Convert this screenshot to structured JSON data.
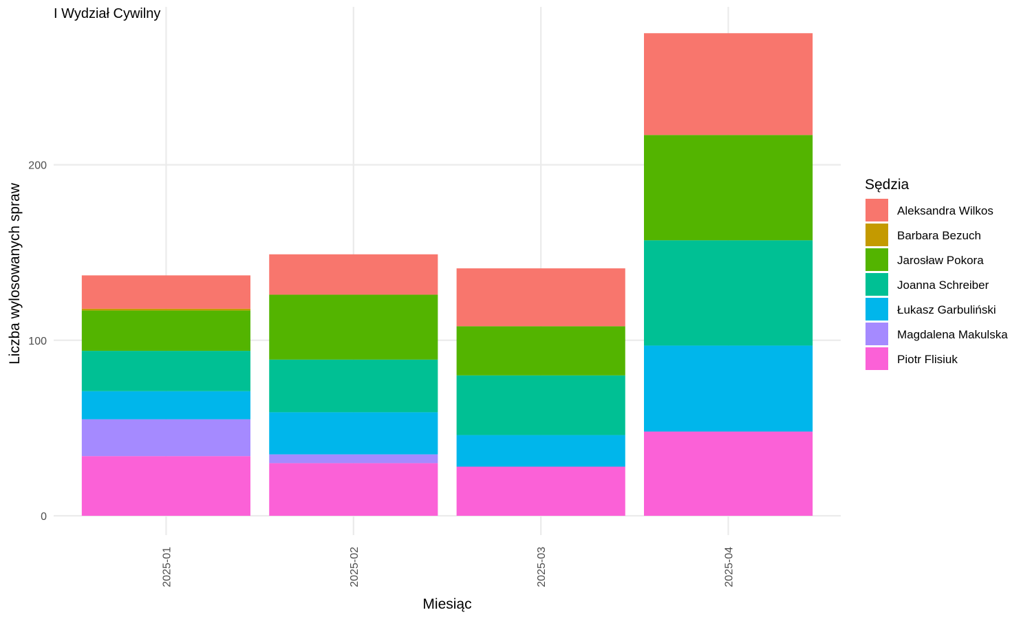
{
  "chart_data": {
    "type": "bar",
    "stacked": true,
    "title": "I Wydział Cywilny",
    "xlabel": "Miesiąc",
    "ylabel": "Liczba wylosowanych spraw",
    "ylim": [
      -11,
      290
    ],
    "yticks": [
      0,
      100,
      200
    ],
    "grid": true,
    "legend_position": "right",
    "legend_title": "Sędzia",
    "categories": [
      "2025-01",
      "2025-02",
      "2025-03",
      "2025-04"
    ],
    "series": [
      {
        "name": "Aleksandra Wilkos",
        "color": "#F8766D",
        "values": [
          19,
          23,
          33,
          58
        ]
      },
      {
        "name": "Barbara Bezuch",
        "color": "#C49A00",
        "values": [
          1,
          0,
          0,
          0
        ]
      },
      {
        "name": "Jarosław Pokora",
        "color": "#53B400",
        "values": [
          23,
          37,
          28,
          60
        ]
      },
      {
        "name": "Joanna Schreiber",
        "color": "#00C094",
        "values": [
          23,
          30,
          34,
          60
        ]
      },
      {
        "name": "Łukasz Garbuliński",
        "color": "#00B6EB",
        "values": [
          16,
          24,
          18,
          49
        ]
      },
      {
        "name": "Magdalena Makulska",
        "color": "#A58AFF",
        "values": [
          21,
          5,
          0,
          0
        ]
      },
      {
        "name": "Piotr Flisiuk",
        "color": "#FB61D7",
        "values": [
          34,
          30,
          28,
          48
        ]
      }
    ]
  }
}
